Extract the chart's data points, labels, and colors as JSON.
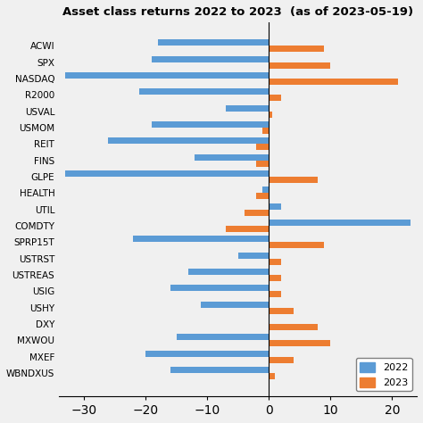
{
  "title": "Asset class returns 2022 to 2023  (as of 2023-05-19)",
  "categories": [
    "ACWI",
    "SPX",
    "NASDAQ",
    "R2000",
    "USVAL",
    "USMOM",
    "REIT",
    "FINS",
    "GLPE",
    "HEALTH",
    "UTIL",
    "COMDTY",
    "SPRP15T",
    "USTRST",
    "USTREAS",
    "USIG",
    "USHY",
    "DXY",
    "MXWOU",
    "MXEF",
    "WBNDXUS"
  ],
  "val_2022": [
    -18,
    -19,
    -33,
    -21,
    -7,
    -19,
    -26,
    -12,
    -33,
    -1,
    2,
    23,
    -22,
    -5,
    -13,
    -16,
    -11,
    0,
    -15,
    -20,
    -16
  ],
  "val_2023": [
    9,
    10,
    21,
    2,
    0.5,
    -1,
    -2,
    -2,
    8,
    -2,
    -4,
    -7,
    9,
    2,
    2,
    2,
    4,
    8,
    10,
    4,
    1
  ],
  "color_2022": "#5B9BD5",
  "color_2023": "#ED7D31",
  "xlim": [
    -34,
    24
  ],
  "xticks": [
    -30,
    -20,
    -10,
    0,
    10,
    20
  ],
  "legend_labels": [
    "2022",
    "2023"
  ],
  "figsize": [
    4.74,
    4.74
  ],
  "dpi": 100,
  "bg_color": "#f0f0f0",
  "title_fontsize": 9.5
}
